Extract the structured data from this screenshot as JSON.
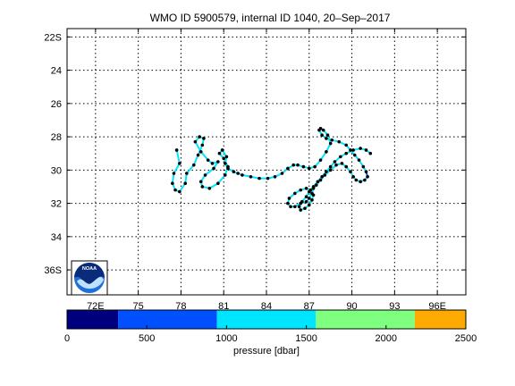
{
  "chart_data": {
    "type": "line",
    "title": "WMO ID 5900579, internal ID 1040, 20–Sep–2017",
    "xlabel": "",
    "ylabel": "",
    "xlim": [
      70,
      98
    ],
    "ylim": [
      37.5,
      21.5
    ],
    "x_ticks": [
      72,
      75,
      78,
      81,
      84,
      87,
      90,
      93,
      96
    ],
    "x_tick_labels": [
      "72E",
      "75",
      "78",
      "81",
      "84",
      "87",
      "90",
      "93",
      "96E"
    ],
    "y_ticks": [
      22,
      24,
      26,
      28,
      30,
      32,
      34,
      36
    ],
    "y_tick_labels": [
      "22S",
      "24",
      "26",
      "28",
      "30",
      "32",
      "34",
      "36S"
    ],
    "grid": true,
    "line_color": "#000000",
    "track": {
      "lon": [
        77.7,
        77.9,
        77.5,
        77.4,
        77.6,
        77.9,
        78.3,
        78.4,
        78.9,
        79.2,
        79.5,
        79.6,
        79.3,
        79.0,
        79.4,
        79.9,
        80.2,
        80.6,
        80.3,
        79.7,
        79.4,
        79.5,
        80.0,
        80.6,
        81.1,
        81.3,
        81.0,
        80.7,
        80.9,
        81.2,
        81.1,
        81.3,
        81.7,
        82.0,
        82.3,
        82.9,
        83.5,
        84.1,
        84.6,
        85.1,
        85.5,
        85.9,
        86.2,
        86.6,
        87.0,
        87.4,
        87.8,
        88.2,
        88.5,
        88.3,
        88.0,
        87.8,
        87.7,
        87.9,
        88.2,
        88.6,
        89.1,
        89.6,
        89.9,
        90.2,
        90.5,
        90.8,
        91.0,
        91.1,
        90.9,
        90.6,
        90.3,
        90.1,
        89.9,
        89.6,
        89.3,
        88.9,
        88.5,
        88.1,
        87.8,
        87.5,
        87.3,
        87.2,
        87.0,
        86.8,
        86.4,
        86.0,
        85.7,
        85.5,
        85.6,
        86.0,
        86.4,
        86.8,
        87.1,
        87.3,
        87.2,
        87.0,
        86.7,
        86.4,
        86.3,
        86.5,
        86.8,
        87.0,
        87.3,
        87.6,
        87.9,
        88.2,
        88.5,
        88.8,
        89.2,
        89.6,
        90.1,
        90.6,
        91.0,
        91.3
      ],
      "lat": [
        28.8,
        29.6,
        30.2,
        30.8,
        31.2,
        31.3,
        30.8,
        30.2,
        29.7,
        29.1,
        28.5,
        28.1,
        28.0,
        28.3,
        28.9,
        29.4,
        29.6,
        29.5,
        29.9,
        30.3,
        30.7,
        31.0,
        31.1,
        30.8,
        30.3,
        29.8,
        29.3,
        29.0,
        28.8,
        29.2,
        29.6,
        29.9,
        30.1,
        30.2,
        30.3,
        30.4,
        30.5,
        30.5,
        30.4,
        30.2,
        29.9,
        29.7,
        29.7,
        29.8,
        29.9,
        29.8,
        29.4,
        28.9,
        28.4,
        27.9,
        27.6,
        27.5,
        27.6,
        27.9,
        28.1,
        28.2,
        28.3,
        28.5,
        28.8,
        29.1,
        29.4,
        29.8,
        30.1,
        30.4,
        30.6,
        30.7,
        30.6,
        30.4,
        30.1,
        29.8,
        29.6,
        29.7,
        30.0,
        30.3,
        30.6,
        30.9,
        31.1,
        31.4,
        31.7,
        31.9,
        32.0,
        32.2,
        32.2,
        32.0,
        31.7,
        31.4,
        31.2,
        31.1,
        31.2,
        31.5,
        31.8,
        32.1,
        32.3,
        32.4,
        32.2,
        31.9,
        31.6,
        31.3,
        31.0,
        30.7,
        30.4,
        30.1,
        29.8,
        29.5,
        29.2,
        29.0,
        28.8,
        28.7,
        28.8,
        29.0
      ],
      "pressure_dbar": [
        1200,
        1300,
        1250,
        1400,
        1300,
        1200,
        1350,
        1300,
        1250,
        1200,
        1400,
        1300,
        1350,
        1250,
        1300,
        1200,
        1400,
        1300,
        1250,
        1350,
        1300,
        1200,
        1400,
        1300,
        1250,
        1350,
        1200,
        1300,
        1400,
        1250,
        1300,
        1350,
        1200,
        1300,
        1400,
        1250,
        1300,
        1350,
        1200,
        1300,
        1250,
        1400,
        1300,
        1200,
        1350,
        1300,
        1250,
        1400,
        1300,
        1200,
        700,
        1300,
        1250,
        1350,
        1300,
        1200,
        1400,
        1300,
        1250,
        1350,
        1300,
        1200,
        700,
        1300,
        1250,
        1350,
        1200,
        1300,
        1400,
        1250,
        1300,
        1350,
        1200,
        1300,
        1400,
        1250,
        1300,
        1350,
        1200,
        1300,
        1250,
        1400,
        1300,
        1200,
        1350,
        1300,
        1250,
        1400,
        1300,
        1200,
        1350,
        1300,
        1250,
        1400,
        1300,
        1200,
        1350,
        1300,
        1250,
        1400,
        1300,
        1200,
        1350,
        1300,
        1250,
        1400,
        1300,
        1200,
        1350,
        1300
      ]
    },
    "colorbar": {
      "label": "pressure [dbar]",
      "range": [
        0,
        2500
      ],
      "ticks": [
        0,
        500,
        1000,
        1500,
        2000,
        2500
      ],
      "tick_labels": [
        "0",
        "500",
        "1000",
        "1500",
        "2000",
        "2500"
      ],
      "bands": [
        {
          "from": 0,
          "to": 320,
          "color": "#00007f"
        },
        {
          "from": 320,
          "to": 940,
          "color": "#0050ff"
        },
        {
          "from": 940,
          "to": 1560,
          "color": "#00e5ff"
        },
        {
          "from": 1560,
          "to": 2180,
          "color": "#7fff7f"
        },
        {
          "from": 2180,
          "to": 2500,
          "color": "#ffaa00"
        }
      ]
    }
  },
  "logo": {
    "text": "NOAA",
    "name": "noaa-logo"
  }
}
